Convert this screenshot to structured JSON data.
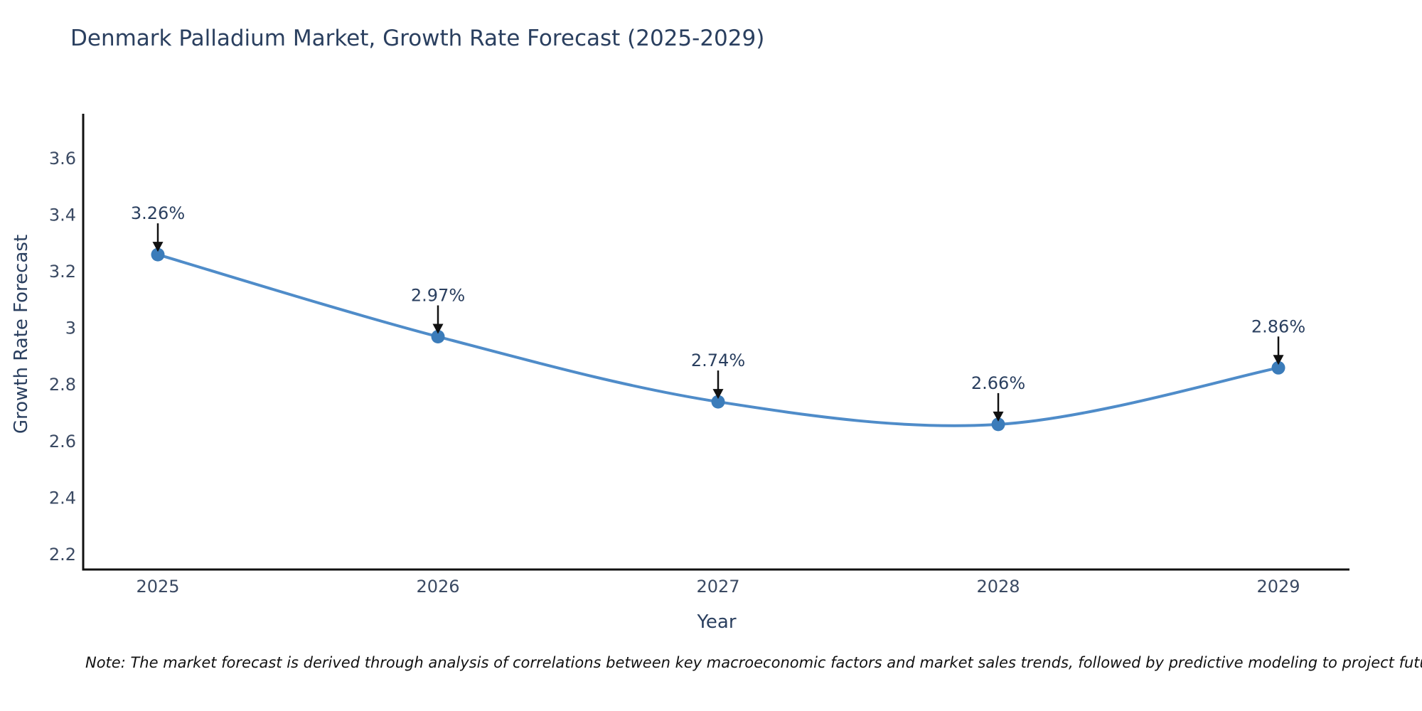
{
  "title": "Denmark Palladium Market, Growth Rate Forecast (2025-2029)",
  "note": "Note: The market forecast is derived through analysis of correlations between key macroeconomic factors and market sales trends, followed by predictive modeling to project future sales",
  "chart_data": {
    "type": "line",
    "title": "Denmark Palladium Market, Growth Rate Forecast (2025-2029)",
    "xlabel": "Year",
    "ylabel": "Growth Rate Forecast",
    "categories": [
      "2025",
      "2026",
      "2027",
      "2028",
      "2029"
    ],
    "series": [
      {
        "name": "Growth Rate Forecast",
        "values": [
          3.26,
          2.97,
          2.74,
          2.66,
          2.86
        ]
      }
    ],
    "point_labels": [
      "3.26%",
      "2.97%",
      "2.74%",
      "2.66%",
      "2.86%"
    ],
    "y_ticks": [
      2.2,
      2.4,
      2.6,
      2.8,
      3,
      3.2,
      3.4,
      3.6
    ],
    "ylim": [
      2.1,
      3.75
    ],
    "grid": false,
    "legend": "none",
    "curve": "spline",
    "line_color": "#4f8cc9",
    "marker_color": "#3b7cba",
    "axis_color": "#111111",
    "arrow_color": "#111111",
    "text_color": "#2a3f5f"
  }
}
